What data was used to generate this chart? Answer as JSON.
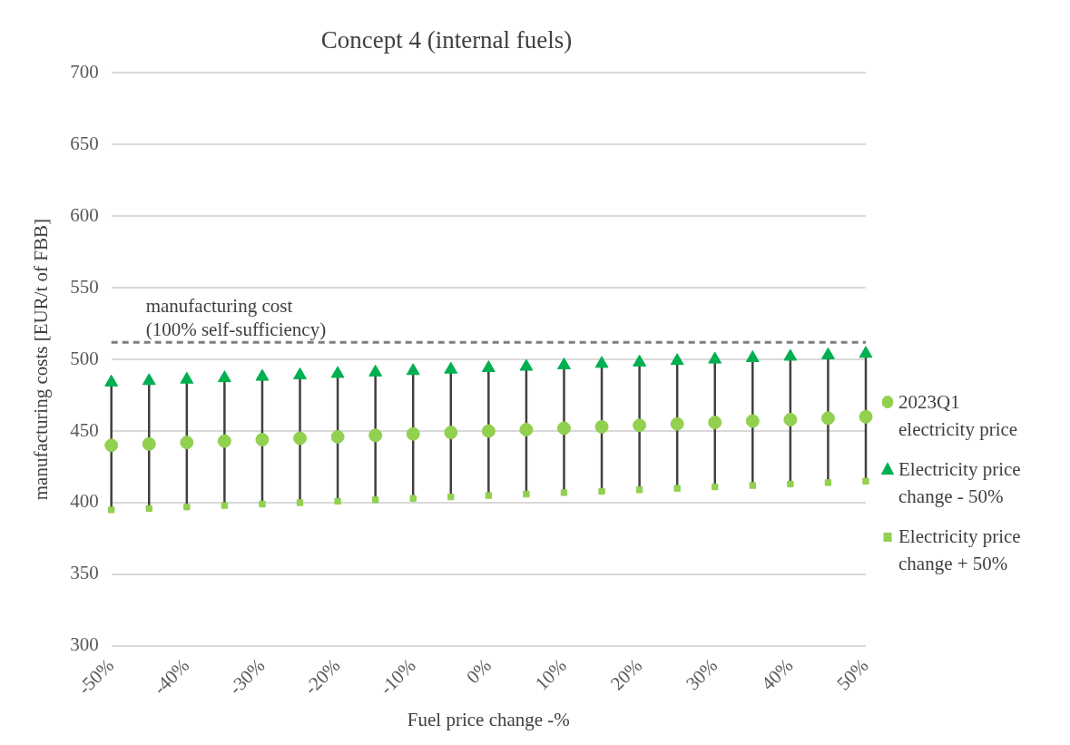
{
  "chart_data": {
    "type": "scatter",
    "title": "Concept 4 (internal fuels)",
    "xlabel": "Fuel price change -%",
    "ylabel": "manufacturing costs [EUR/t of FBB]",
    "categories": [
      "-50%",
      null,
      "-40%",
      null,
      "-30%",
      null,
      "-20%",
      null,
      "-10%",
      null,
      "0%",
      null,
      "10%",
      null,
      "20%",
      null,
      "30%",
      null,
      "40%",
      null,
      "50%"
    ],
    "series": [
      {
        "name": "2023Q1 electricity price",
        "color": "#92d050",
        "marker": "circle",
        "values": [
          440,
          441,
          442,
          443,
          444,
          445,
          446,
          447,
          448,
          449,
          450,
          451,
          452,
          453,
          454,
          455,
          456,
          457,
          458,
          459,
          460
        ]
      },
      {
        "name": "Electricity price change - 50%",
        "color": "#00b050",
        "marker": "triangle",
        "values": [
          484,
          485,
          486,
          487,
          488,
          489,
          490,
          491,
          492,
          493,
          494,
          495,
          496,
          497,
          498,
          499,
          500,
          501,
          502,
          503,
          504
        ]
      },
      {
        "name": "Electricity price change + 50%",
        "color": "#92d050",
        "marker": "square",
        "values": [
          395,
          396,
          397,
          398,
          399,
          400,
          401,
          402,
          403,
          404,
          405,
          406,
          407,
          408,
          409,
          410,
          411,
          412,
          413,
          414,
          415
        ]
      }
    ],
    "ylim": [
      300,
      700
    ],
    "yticks": [
      300,
      350,
      400,
      450,
      500,
      550,
      600,
      650,
      700
    ],
    "grid": "y",
    "legend": "right",
    "ref_lines": [
      {
        "axis": "y",
        "value": 512,
        "label": "manufacturing cost\n(100% self-sufficiency)",
        "color": "#7f7f7f",
        "line_style": "dashed"
      }
    ]
  }
}
